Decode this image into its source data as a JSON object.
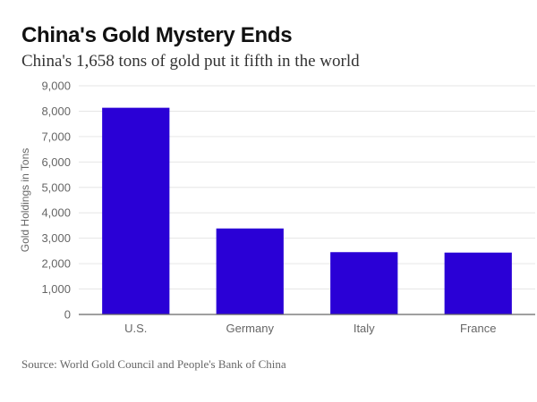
{
  "chart_data": {
    "type": "bar",
    "title": "China's Gold Mystery Ends",
    "subtitle": "China's 1,658 tons of gold put it fifth in the world",
    "ylabel": "Gold Holdings in Tons",
    "xlabel": "",
    "categories": [
      "U.S.",
      "Germany",
      "Italy",
      "France"
    ],
    "values": [
      8134,
      3384,
      2452,
      2435
    ],
    "ylim": [
      0,
      9000
    ],
    "yticks": [
      0,
      1000,
      2000,
      3000,
      4000,
      5000,
      6000,
      7000,
      8000,
      9000
    ],
    "ytick_labels": [
      "0",
      "1,000",
      "2,000",
      "3,000",
      "4,000",
      "5,000",
      "6,000",
      "7,000",
      "8,000",
      "9,000"
    ],
    "grid": true,
    "bar_color": "#2a00d6",
    "source": "Source: World Gold Council and People's Bank of China"
  }
}
